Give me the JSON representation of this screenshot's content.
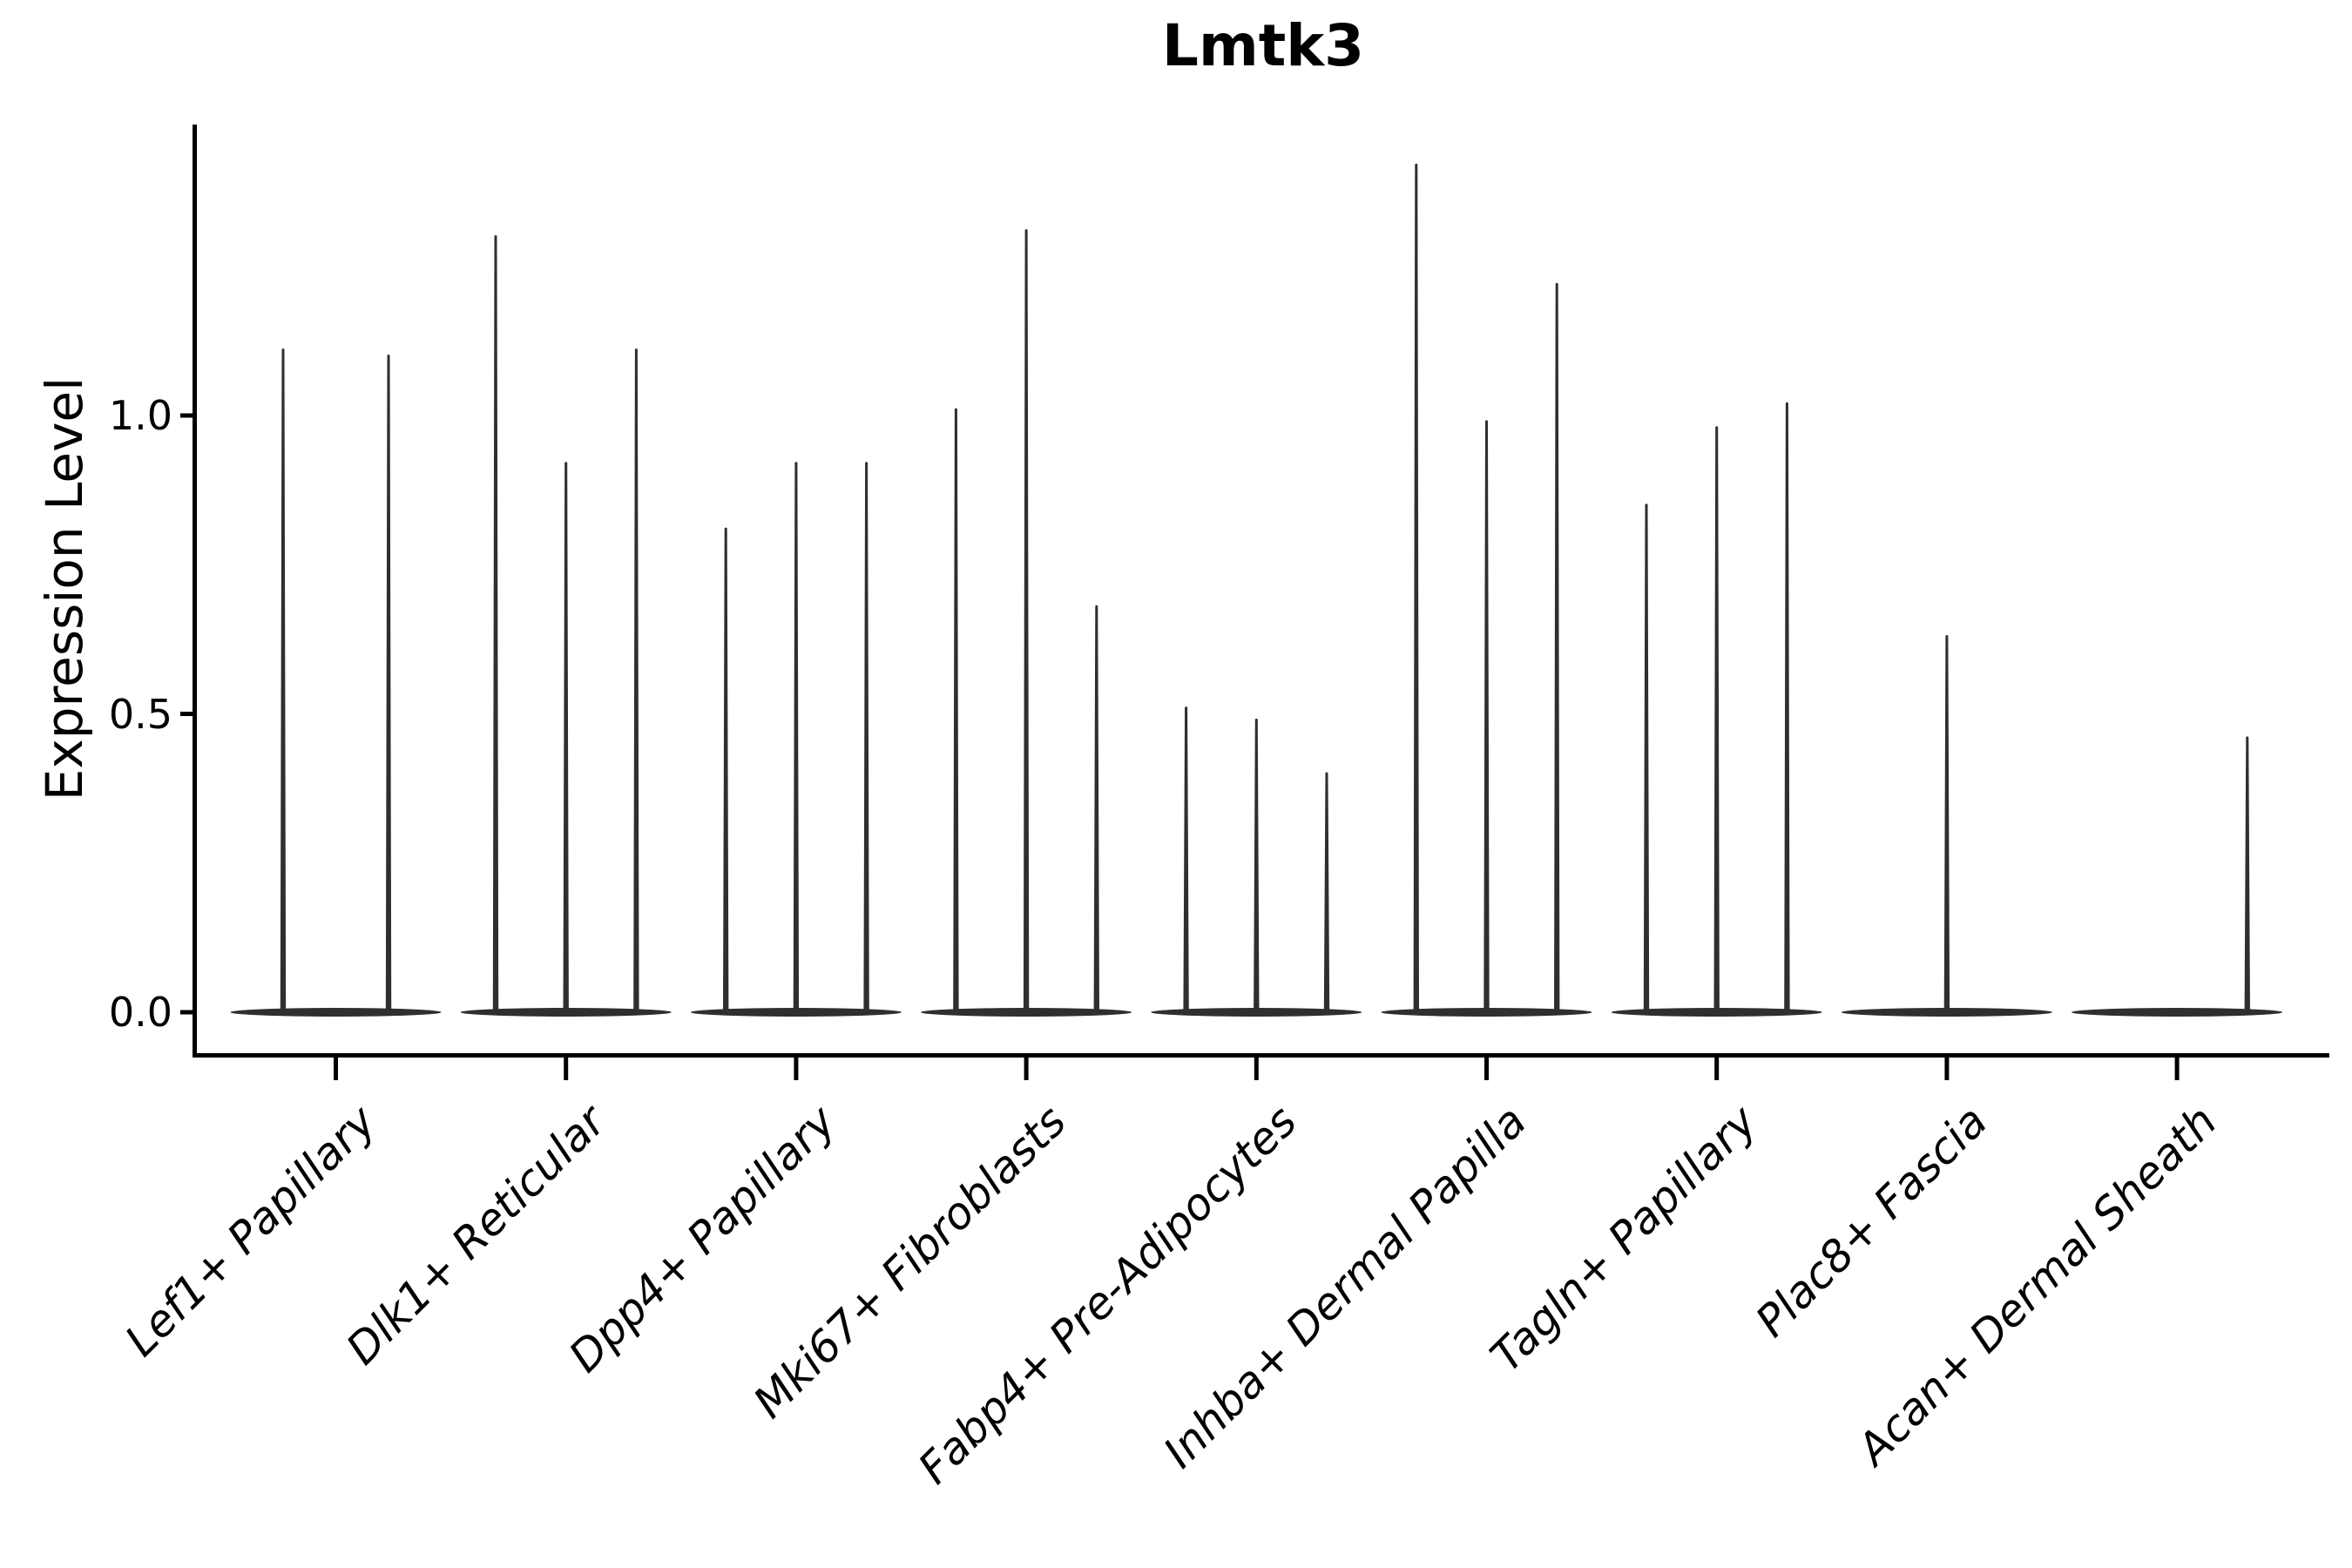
{
  "chart_data": {
    "type": "violin",
    "title": "Lmtk3",
    "ylabel": "Expression Level",
    "xlabel": "",
    "ytick_labels": [
      "0.0",
      "0.5",
      "1.0"
    ],
    "ytick_values": [
      0.0,
      0.5,
      1.0
    ],
    "ylim": [
      -0.07,
      1.49
    ],
    "grid": false,
    "legend": "none",
    "violin_color": "#2f2f2f",
    "axis_color": "#000000",
    "background_color": "#ffffff",
    "categories": [
      "Lef1+ Papillary",
      "Dlk1+ Reticular",
      "Dpp4+ Papillary",
      "Mki67+ Fibroblasts",
      "Fabp4+ Pre-Adipocytes",
      "Inhba+ Dermal Papilla",
      "Tagln+ Papillary",
      "Plac8+ Fascia",
      "Acan+ Dermal Sheath"
    ],
    "groups": [
      {
        "label": "Lef1+ Papillary",
        "spikes": [
          {
            "slot": -0.75,
            "value": 1.11
          },
          {
            "slot": 0.75,
            "value": 1.1
          }
        ]
      },
      {
        "label": "Dlk1+ Reticular",
        "spikes": [
          {
            "slot": -1,
            "value": 1.3
          },
          {
            "slot": 0,
            "value": 0.92
          },
          {
            "slot": 1,
            "value": 1.11
          }
        ]
      },
      {
        "label": "Dpp4+ Papillary",
        "spikes": [
          {
            "slot": -1,
            "value": 0.81
          },
          {
            "slot": 0,
            "value": 0.92
          },
          {
            "slot": 1,
            "value": 0.92
          }
        ]
      },
      {
        "label": "Mki67+ Fibroblasts",
        "spikes": [
          {
            "slot": -1,
            "value": 1.01
          },
          {
            "slot": 0,
            "value": 1.31
          },
          {
            "slot": 1,
            "value": 0.68
          }
        ]
      },
      {
        "label": "Fabp4+ Pre-Adipocytes",
        "spikes": [
          {
            "slot": -1,
            "value": 0.51
          },
          {
            "slot": 0,
            "value": 0.49
          },
          {
            "slot": 1,
            "value": 0.4
          }
        ]
      },
      {
        "label": "Inhba+ Dermal Papilla",
        "spikes": [
          {
            "slot": -1,
            "value": 1.42
          },
          {
            "slot": 0,
            "value": 0.99
          },
          {
            "slot": 1,
            "value": 1.22
          }
        ]
      },
      {
        "label": "Tagln+ Papillary",
        "spikes": [
          {
            "slot": -1,
            "value": 0.85
          },
          {
            "slot": 0,
            "value": 0.98
          },
          {
            "slot": 1,
            "value": 1.02
          }
        ]
      },
      {
        "label": "Plac8+ Fascia",
        "spikes": [
          {
            "slot": 0,
            "value": 0.63
          }
        ]
      },
      {
        "label": "Acan+ Dermal Sheath",
        "spikes": [
          {
            "slot": 1,
            "value": 0.46
          }
        ]
      }
    ]
  }
}
